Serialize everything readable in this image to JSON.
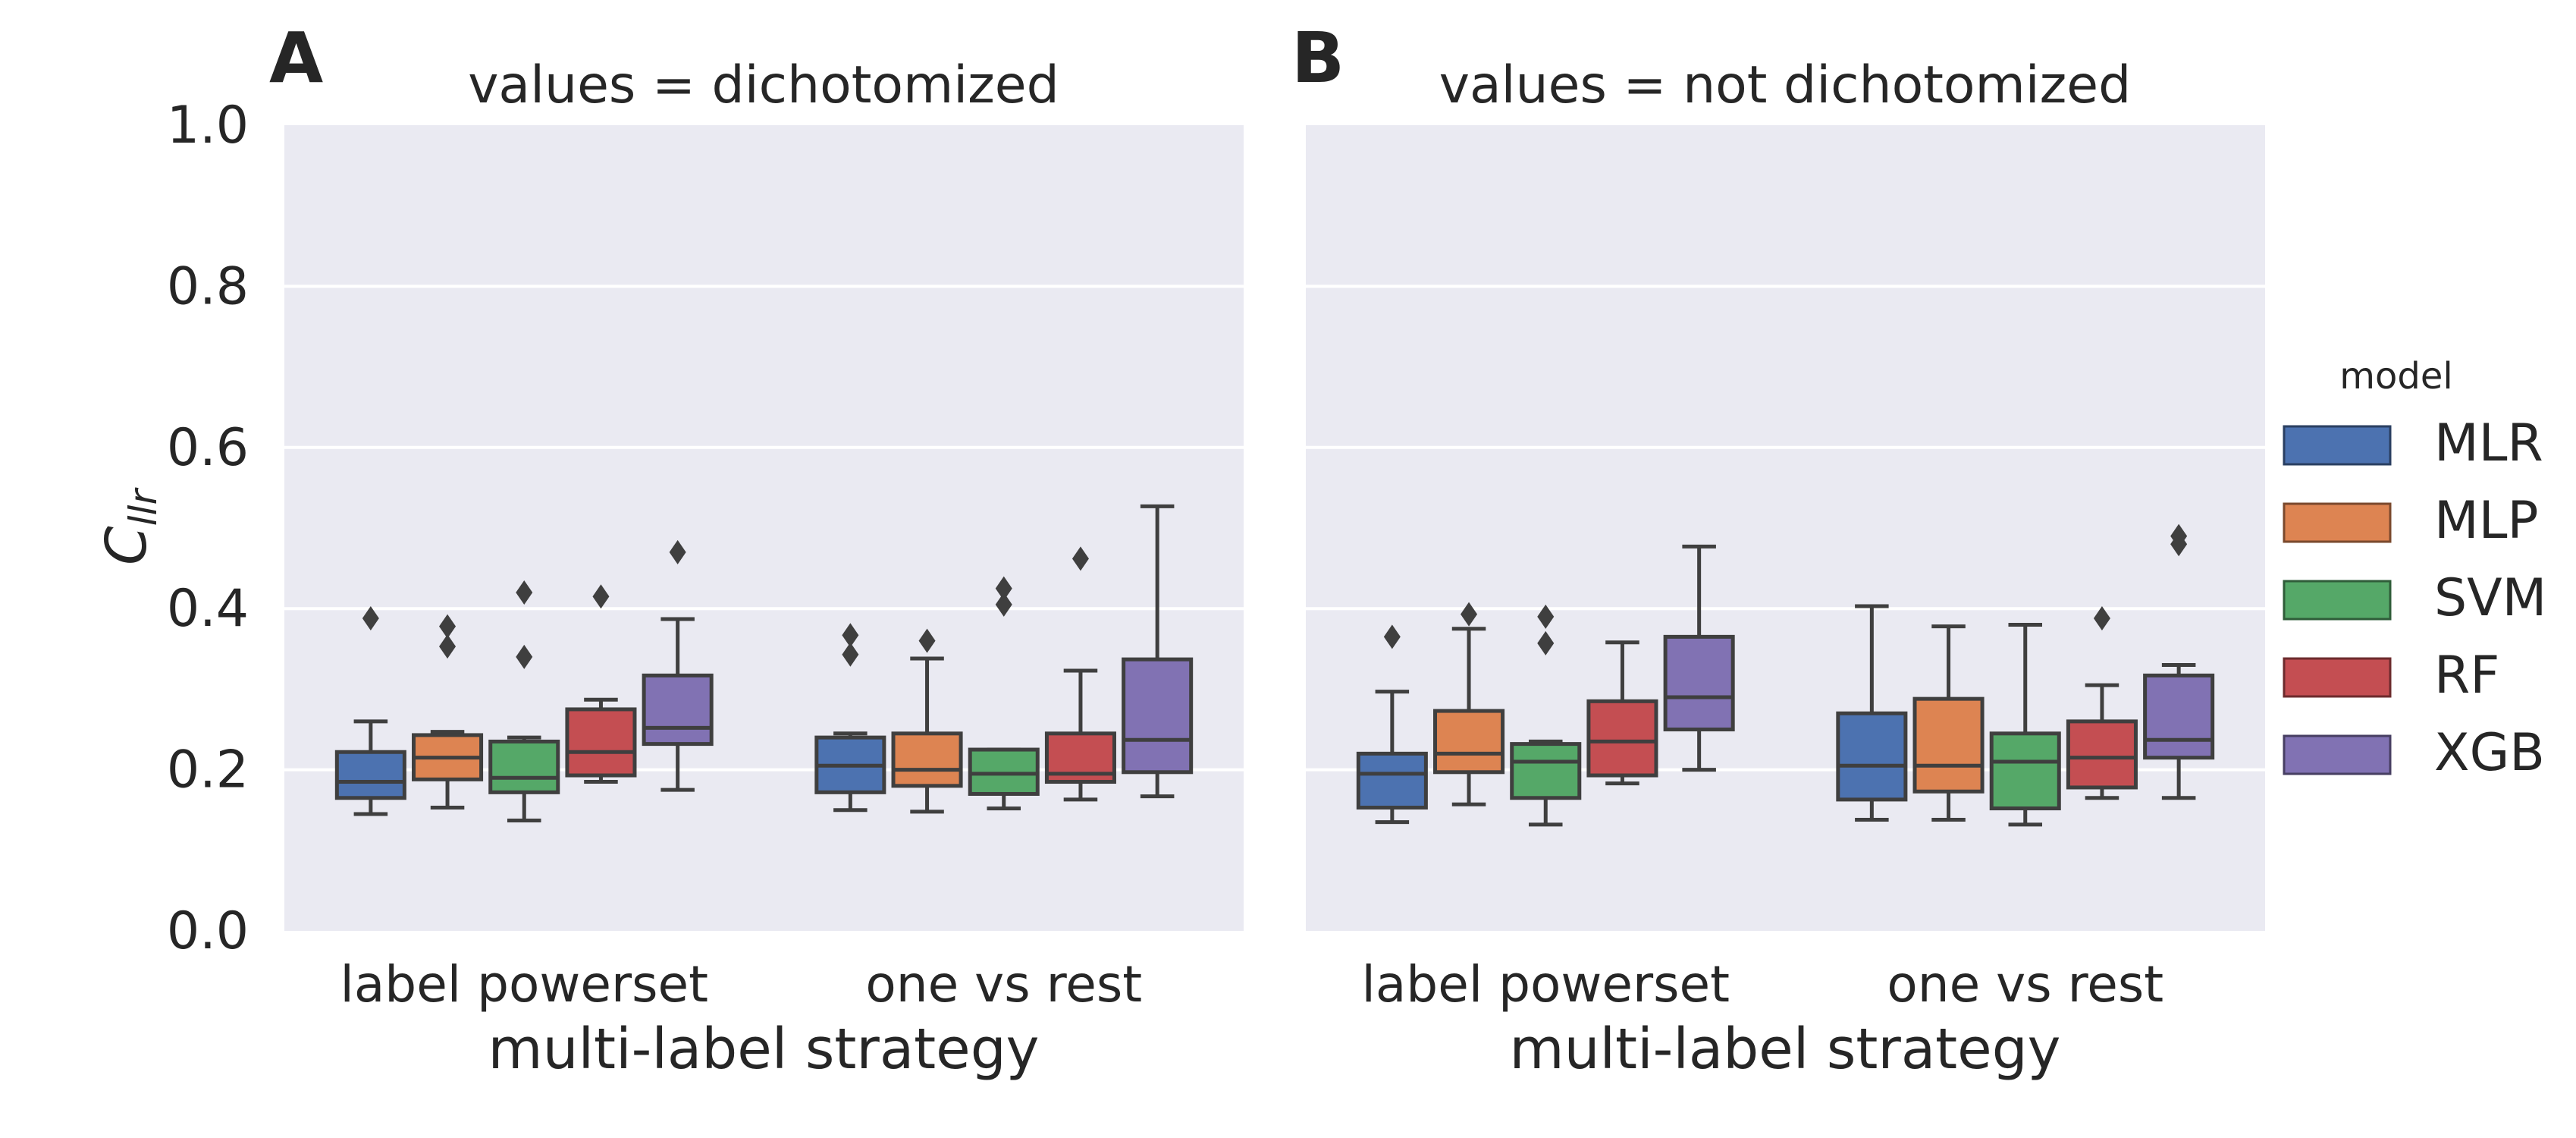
{
  "panels": [
    {
      "letter": "A",
      "title": "values = dichotomized"
    },
    {
      "letter": "B",
      "title": "values = not dichotomized"
    }
  ],
  "xlabel": "multi-label strategy",
  "ylabel_main": "C",
  "ylabel_sub": "llr",
  "legend": {
    "title": "model"
  },
  "chart_data": {
    "type": "box",
    "ylim": [
      0,
      1
    ],
    "yticks": [
      0.0,
      0.2,
      0.4,
      0.6,
      0.8,
      1.0
    ],
    "ytick_labels": [
      "0.0",
      "0.2",
      "0.4",
      "0.6",
      "0.8",
      "1.0"
    ],
    "categories": [
      "label powerset",
      "one vs rest"
    ],
    "grid": true,
    "legend_placement": "right",
    "models": [
      {
        "name": "MLR",
        "color": "#4c72b0"
      },
      {
        "name": "MLP",
        "color": "#dd8452"
      },
      {
        "name": "SVM",
        "color": "#55a868"
      },
      {
        "name": "RF",
        "color": "#c44e52"
      },
      {
        "name": "XGB",
        "color": "#8172b3"
      }
    ],
    "panels": [
      {
        "title": "values = dichotomized",
        "groups": [
          [
            {
              "whislo": 0.145,
              "q1": 0.165,
              "med": 0.185,
              "q3": 0.222,
              "whishi": 0.26,
              "fliers": [
                0.388
              ]
            },
            {
              "whislo": 0.153,
              "q1": 0.188,
              "med": 0.215,
              "q3": 0.243,
              "whishi": 0.247,
              "fliers": [
                0.353,
                0.378
              ]
            },
            {
              "whislo": 0.137,
              "q1": 0.172,
              "med": 0.19,
              "q3": 0.235,
              "whishi": 0.24,
              "fliers": [
                0.34,
                0.42
              ]
            },
            {
              "whislo": 0.185,
              "q1": 0.193,
              "med": 0.222,
              "q3": 0.275,
              "whishi": 0.287,
              "fliers": [
                0.415
              ]
            },
            {
              "whislo": 0.175,
              "q1": 0.232,
              "med": 0.252,
              "q3": 0.317,
              "whishi": 0.387,
              "fliers": [
                0.47
              ]
            }
          ],
          [
            {
              "whislo": 0.15,
              "q1": 0.172,
              "med": 0.205,
              "q3": 0.24,
              "whishi": 0.245,
              "fliers": [
                0.343,
                0.367
              ]
            },
            {
              "whislo": 0.148,
              "q1": 0.18,
              "med": 0.2,
              "q3": 0.245,
              "whishi": 0.338,
              "fliers": [
                0.36
              ]
            },
            {
              "whislo": 0.152,
              "q1": 0.17,
              "med": 0.195,
              "q3": 0.225,
              "whishi": 0.225,
              "fliers": [
                0.405,
                0.425
              ]
            },
            {
              "whislo": 0.163,
              "q1": 0.185,
              "med": 0.195,
              "q3": 0.245,
              "whishi": 0.323,
              "fliers": [
                0.462
              ]
            },
            {
              "whislo": 0.167,
              "q1": 0.197,
              "med": 0.237,
              "q3": 0.337,
              "whishi": 0.527,
              "fliers": []
            }
          ]
        ]
      },
      {
        "title": "values = not dichotomized",
        "groups": [
          [
            {
              "whislo": 0.135,
              "q1": 0.153,
              "med": 0.195,
              "q3": 0.22,
              "whishi": 0.297,
              "fliers": [
                0.365
              ]
            },
            {
              "whislo": 0.157,
              "q1": 0.197,
              "med": 0.22,
              "q3": 0.273,
              "whishi": 0.375,
              "fliers": [
                0.393
              ]
            },
            {
              "whislo": 0.132,
              "q1": 0.165,
              "med": 0.21,
              "q3": 0.232,
              "whishi": 0.235,
              "fliers": [
                0.357,
                0.39
              ]
            },
            {
              "whislo": 0.183,
              "q1": 0.193,
              "med": 0.235,
              "q3": 0.285,
              "whishi": 0.358,
              "fliers": []
            },
            {
              "whislo": 0.2,
              "q1": 0.25,
              "med": 0.29,
              "q3": 0.365,
              "whishi": 0.477,
              "fliers": []
            }
          ],
          [
            {
              "whislo": 0.138,
              "q1": 0.163,
              "med": 0.205,
              "q3": 0.27,
              "whishi": 0.403,
              "fliers": []
            },
            {
              "whislo": 0.138,
              "q1": 0.173,
              "med": 0.205,
              "q3": 0.288,
              "whishi": 0.378,
              "fliers": []
            },
            {
              "whislo": 0.132,
              "q1": 0.152,
              "med": 0.21,
              "q3": 0.245,
              "whishi": 0.38,
              "fliers": []
            },
            {
              "whislo": 0.165,
              "q1": 0.178,
              "med": 0.215,
              "q3": 0.26,
              "whishi": 0.305,
              "fliers": [
                0.388
              ]
            },
            {
              "whislo": 0.165,
              "q1": 0.215,
              "med": 0.237,
              "q3": 0.317,
              "whishi": 0.33,
              "fliers": [
                0.48,
                0.49
              ]
            }
          ]
        ]
      }
    ]
  }
}
